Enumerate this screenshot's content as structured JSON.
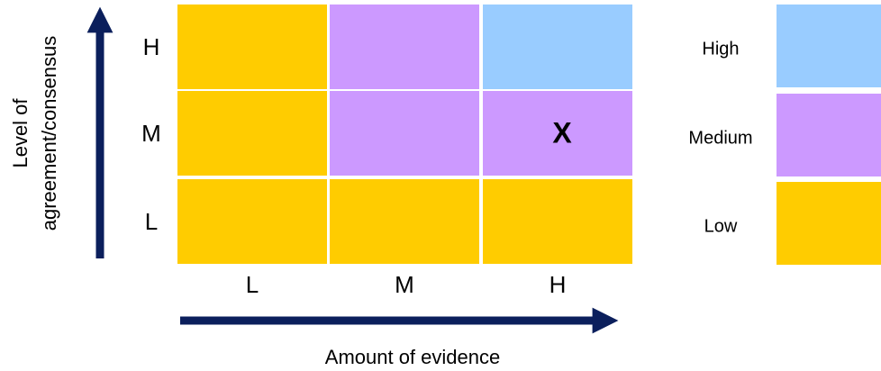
{
  "y_axis": {
    "label_lines": [
      "Level of",
      "agreement/consensus"
    ],
    "levels": [
      "H",
      "M",
      "L"
    ]
  },
  "x_axis": {
    "label": "Amount of evidence",
    "levels": [
      "L",
      "M",
      "H"
    ]
  },
  "grid": {
    "rows": [
      [
        {
          "color": "#FFCC00"
        },
        {
          "color": "#CC99FF"
        },
        {
          "color": "#99CCFF"
        }
      ],
      [
        {
          "color": "#FFCC00"
        },
        {
          "color": "#CC99FF"
        },
        {
          "color": "#CC99FF",
          "text": "X"
        }
      ],
      [
        {
          "color": "#FFCC00"
        },
        {
          "color": "#FFCC00"
        },
        {
          "color": "#FFCC00"
        }
      ]
    ]
  },
  "legend": [
    {
      "label": "High",
      "color": "#99CCFF"
    },
    {
      "label": "Medium",
      "color": "#CC99FF"
    },
    {
      "label": "Low",
      "color": "#FFCC00"
    }
  ]
}
